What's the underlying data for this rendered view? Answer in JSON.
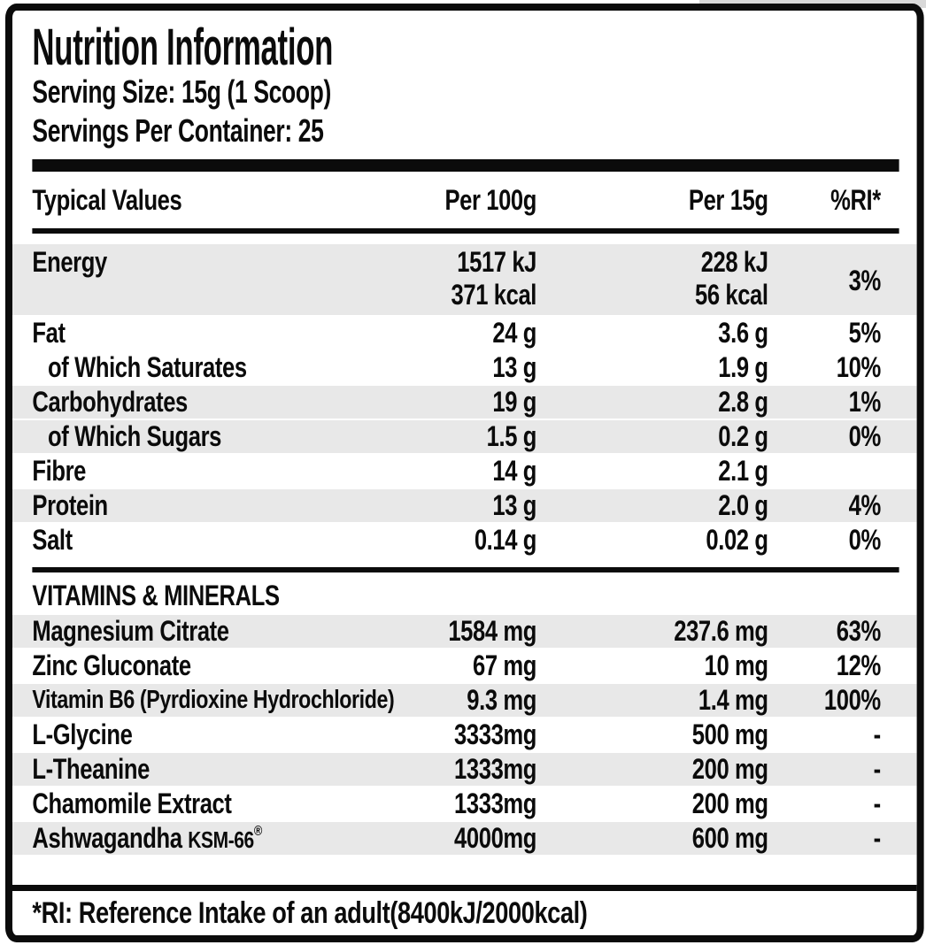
{
  "header": {
    "title": "Nutrition Information",
    "serving_size": "Serving Size: 15g (1 Scoop)",
    "servings_per_container": "Servings Per Container: 25"
  },
  "table": {
    "columns": [
      "Typical Values",
      "Per 100g",
      "Per 15g",
      "%RI*"
    ],
    "rows": [
      {
        "label": "Energy",
        "per100g": [
          "1517 kJ",
          "371 kcal"
        ],
        "per15g": [
          "228 kJ",
          "56 kcal"
        ],
        "ri": "3%",
        "shaded": true
      },
      {
        "label": "Fat",
        "per100g": "24 g",
        "per15g": "3.6 g",
        "ri": "5%"
      },
      {
        "label": "of Which Saturates",
        "indent": true,
        "per100g": "13 g",
        "per15g": "1.9 g",
        "ri": "10%"
      },
      {
        "label": "Carbohydrates",
        "per100g": "19 g",
        "per15g": "2.8 g",
        "ri": "1%",
        "shaded": true
      },
      {
        "label": "of Which Sugars",
        "indent": true,
        "per100g": "1.5 g",
        "per15g": "0.2 g",
        "ri": "0%",
        "shaded": true
      },
      {
        "label": "Fibre",
        "per100g": "14 g",
        "per15g": "2.1 g",
        "ri": ""
      },
      {
        "label": "Protein",
        "per100g": "13 g",
        "per15g": "2.0 g",
        "ri": "4%",
        "shaded": true
      },
      {
        "label": "Salt",
        "per100g": "0.14 g",
        "per15g": "0.02 g",
        "ri": "0%"
      }
    ]
  },
  "vitamins": {
    "heading": "VITAMINS & MINERALS",
    "rows": [
      {
        "label": "Magnesium Citrate",
        "per100g": "1584 mg",
        "per15g": "237.6 mg",
        "ri": "63%",
        "shaded": true
      },
      {
        "label": "Zinc Gluconate",
        "per100g": "67 mg",
        "per15g": "10 mg",
        "ri": "12%"
      },
      {
        "label": "Vitamin B6 (Pyrdioxine Hydrochloride)",
        "tight": true,
        "per100g": "9.3 mg",
        "per15g": "1.4 mg",
        "ri": "100%",
        "shaded": true
      },
      {
        "label": "L-Glycine",
        "per100g": "3333mg",
        "per15g": "500 mg",
        "ri": "-"
      },
      {
        "label": "L-Theanine",
        "per100g": "1333mg",
        "per15g": "200 mg",
        "ri": "-",
        "shaded": true
      },
      {
        "label": "Chamomile Extract",
        "per100g": "1333mg",
        "per15g": "200 mg",
        "ri": "-"
      },
      {
        "label": "Ashwagandha",
        "brand": "KSM-66",
        "reg": "®",
        "per100g": "4000mg",
        "per15g": "600 mg",
        "ri": "-",
        "shaded": true
      }
    ]
  },
  "footnote": "*RI: Reference Intake of an adult(8400kJ/2000kcal)",
  "colors": {
    "ink": "#0b0b0b",
    "stripe": "#e8e8e8",
    "background": "#ffffff"
  }
}
